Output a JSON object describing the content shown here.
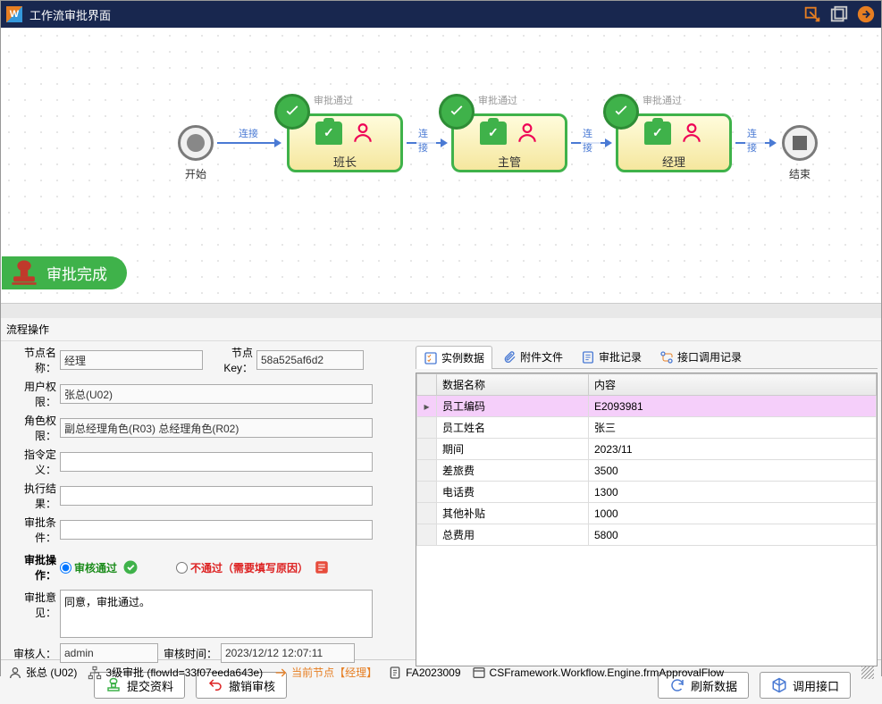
{
  "titlebar": {
    "logo": "W",
    "title": "工作流审批界面"
  },
  "flow": {
    "start": {
      "label": "开始"
    },
    "end": {
      "label": "结束"
    },
    "nodes": [
      {
        "name": "班长",
        "status": "审批通过"
      },
      {
        "name": "主管",
        "status": "审批通过"
      },
      {
        "name": "经理",
        "status": "审批通过"
      }
    ],
    "link_label": "连接",
    "status_badge": "审批完成"
  },
  "section_header": "流程操作",
  "form": {
    "labels": {
      "node_name": "节点名称：",
      "node_key": "节点Key：",
      "user_perm": "用户权限：",
      "role_perm": "角色权限：",
      "cmd_def": "指令定义：",
      "exec_result": "执行结果：",
      "approve_cond": "审批条件：",
      "approve_action": "审批操作：",
      "approve_opinion": "审批意见：",
      "approver": "审核人：",
      "approve_time": "审核时间："
    },
    "values": {
      "node_name": "经理",
      "node_key": "58a525af6d2",
      "user_perm": "张总(U02)",
      "role_perm": "副总经理角色(R03) 总经理角色(R02)",
      "cmd_def": "",
      "exec_result": "",
      "approve_cond": "",
      "approve_opinion": "同意，审批通过。",
      "approver": "admin",
      "approve_time": "2023/12/12 12:07:11"
    },
    "radio": {
      "pass": "审核通过",
      "reject": "不通过（需要填写原因）"
    }
  },
  "tabs": [
    "实例数据",
    "附件文件",
    "审批记录",
    "接口调用记录"
  ],
  "grid": {
    "col_name": "数据名称",
    "col_value": "内容",
    "rows": [
      {
        "k": "员工编码",
        "v": "E2093981"
      },
      {
        "k": "员工姓名",
        "v": "张三"
      },
      {
        "k": "期间",
        "v": "2023/11"
      },
      {
        "k": "差旅费",
        "v": "3500"
      },
      {
        "k": "电话费",
        "v": "1300"
      },
      {
        "k": "其他补贴",
        "v": "1000"
      },
      {
        "k": "总费用",
        "v": "5800"
      }
    ]
  },
  "buttons": {
    "submit": "提交资料",
    "revoke": "撤销审核",
    "refresh": "刷新数据",
    "invoke": "调用接口"
  },
  "statusbar": {
    "user": "张总 (U02)",
    "flow_level": "3级审批  (flowId=33f07eeda643e)",
    "current_node": "当前节点【经理】",
    "doc_no": "FA2023009",
    "form_class": "CSFramework.Workflow.Engine.frmApprovalFlow"
  },
  "colors": {
    "titlebar": "#18274F",
    "green": "#3fb24a",
    "orange": "#e67e22",
    "arrow": "#4a7ad4"
  }
}
